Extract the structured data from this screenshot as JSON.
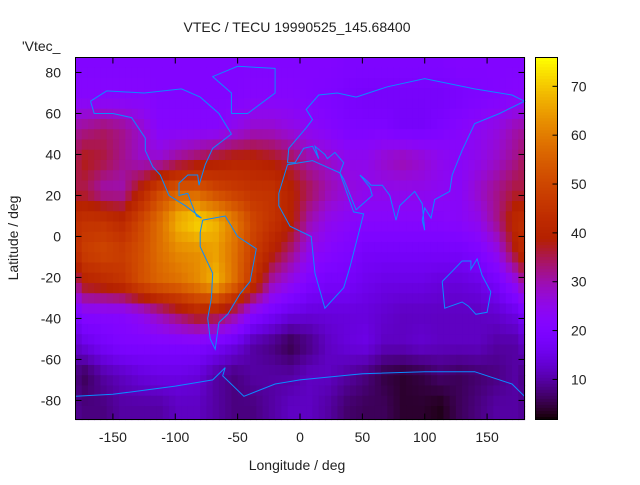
{
  "chart_data": {
    "type": "heatmap",
    "title": "VTEC / TECU 19990525_145.68400",
    "xlabel": "Longitude / deg",
    "ylabel": "Latitude / deg",
    "key_label": "'Vtec_",
    "xlim": [
      -180,
      180
    ],
    "ylim": [
      -89.3,
      87.3
    ],
    "xticks": [
      -150,
      -100,
      -50,
      0,
      50,
      100,
      150
    ],
    "yticks": [
      -80,
      -60,
      -40,
      -20,
      0,
      20,
      40,
      60,
      80
    ],
    "cbrange": [
      1.8,
      75.9
    ],
    "cbticks": [
      10,
      20,
      30,
      40,
      50,
      60,
      70
    ],
    "palette": "gnuplot rgbformulae 7,5,15",
    "coastline_color": "#0a8cff",
    "grid_lon_centers": [
      -172.5,
      -157.5,
      -142.5,
      -127.5,
      -112.5,
      -97.5,
      -82.5,
      -67.5,
      -52.5,
      -37.5,
      -22.5,
      -7.5,
      7.5,
      22.5,
      37.5,
      52.5,
      67.5,
      82.5,
      97.5,
      112.5,
      127.5,
      142.5,
      157.5,
      172.5
    ],
    "grid_lat_centers": [
      82.5,
      67.5,
      52.5,
      37.5,
      22.5,
      7.5,
      -7.5,
      -22.5,
      -37.5,
      -52.5,
      -67.5,
      -82.5
    ],
    "values": [
      [
        21,
        21,
        21,
        21,
        21,
        21,
        21,
        21,
        21,
        21,
        21,
        21,
        21,
        21,
        20,
        20,
        20,
        20,
        20,
        20,
        21,
        21,
        21,
        21
      ],
      [
        22,
        22,
        22,
        22,
        21,
        21,
        21,
        21,
        21,
        22,
        22,
        22,
        21,
        20,
        19,
        18,
        18,
        18,
        18,
        18,
        19,
        20,
        21,
        22
      ],
      [
        32,
        34,
        32,
        28,
        22,
        22,
        22,
        22,
        25,
        28,
        28,
        26,
        24,
        22,
        20,
        20,
        20,
        18,
        18,
        20,
        22,
        24,
        26,
        30
      ],
      [
        38,
        36,
        32,
        28,
        28,
        32,
        35,
        38,
        40,
        40,
        38,
        35,
        30,
        28,
        25,
        25,
        28,
        30,
        28,
        25,
        23,
        25,
        28,
        32
      ],
      [
        35,
        30,
        30,
        40,
        50,
        55,
        55,
        50,
        47,
        45,
        45,
        40,
        35,
        30,
        27,
        25,
        25,
        25,
        25,
        24,
        23,
        28,
        32,
        36
      ],
      [
        45,
        45,
        42,
        50,
        58,
        68,
        72,
        68,
        60,
        50,
        45,
        40,
        30,
        25,
        23,
        22,
        22,
        22,
        22,
        22,
        23,
        25,
        32,
        42
      ],
      [
        48,
        50,
        48,
        52,
        58,
        62,
        63,
        65,
        58,
        48,
        40,
        33,
        25,
        22,
        20,
        18,
        18,
        18,
        18,
        18,
        18,
        20,
        25,
        38
      ],
      [
        40,
        42,
        45,
        52,
        56,
        58,
        62,
        68,
        58,
        45,
        30,
        25,
        20,
        18,
        18,
        16,
        15,
        15,
        15,
        14,
        14,
        15,
        18,
        25
      ],
      [
        22,
        22,
        22,
        25,
        30,
        35,
        40,
        38,
        32,
        22,
        18,
        15,
        14,
        14,
        14,
        14,
        13,
        12,
        12,
        12,
        12,
        12,
        13,
        15
      ],
      [
        15,
        18,
        20,
        20,
        20,
        20,
        20,
        18,
        15,
        10,
        8,
        5,
        8,
        12,
        14,
        15,
        12,
        12,
        13,
        12,
        12,
        12,
        10,
        10
      ],
      [
        6,
        10,
        12,
        14,
        15,
        15,
        14,
        10,
        8,
        10,
        10,
        10,
        12,
        12,
        10,
        8,
        5,
        4,
        5,
        7,
        6,
        7,
        8,
        10
      ],
      [
        8,
        8,
        10,
        10,
        10,
        12,
        12,
        10,
        8,
        8,
        10,
        12,
        12,
        10,
        7,
        6,
        6,
        4,
        4,
        3,
        6,
        8,
        10,
        10
      ]
    ],
    "coastlines": [
      [
        [
          -168,
          66
        ],
        [
          -155,
          71
        ],
        [
          -125,
          70
        ],
        [
          -95,
          72
        ],
        [
          -80,
          68
        ],
        [
          -65,
          60
        ],
        [
          -55,
          50
        ],
        [
          -70,
          43
        ],
        [
          -76,
          35
        ],
        [
          -81,
          25
        ],
        [
          -82,
          30
        ],
        [
          -90,
          30
        ],
        [
          -97,
          26
        ],
        [
          -97,
          20
        ],
        [
          -90,
          21
        ],
        [
          -87,
          16
        ],
        [
          -83,
          10
        ],
        [
          -79,
          9
        ],
        [
          -92,
          15
        ],
        [
          -105,
          20
        ],
        [
          -112,
          30
        ],
        [
          -118,
          34
        ],
        [
          -124,
          42
        ],
        [
          -124,
          48
        ],
        [
          -135,
          58
        ],
        [
          -150,
          60
        ],
        [
          -165,
          60
        ],
        [
          -168,
          66
        ]
      ],
      [
        [
          -78,
          8
        ],
        [
          -60,
          10
        ],
        [
          -50,
          0
        ],
        [
          -35,
          -6
        ],
        [
          -40,
          -22
        ],
        [
          -48,
          -28
        ],
        [
          -58,
          -38
        ],
        [
          -65,
          -42
        ],
        [
          -68,
          -55
        ],
        [
          -72,
          -50
        ],
        [
          -74,
          -40
        ],
        [
          -71,
          -30
        ],
        [
          -70,
          -18
        ],
        [
          -80,
          -5
        ],
        [
          -80,
          2
        ],
        [
          -78,
          8
        ]
      ],
      [
        [
          -17,
          21
        ],
        [
          -10,
          35
        ],
        [
          10,
          37
        ],
        [
          32,
          31
        ],
        [
          43,
          12
        ],
        [
          51,
          11
        ],
        [
          40,
          -15
        ],
        [
          35,
          -25
        ],
        [
          20,
          -35
        ],
        [
          12,
          -18
        ],
        [
          9,
          0
        ],
        [
          -8,
          5
        ],
        [
          -17,
          15
        ],
        [
          -17,
          21
        ]
      ],
      [
        [
          -10,
          36
        ],
        [
          -9,
          43
        ],
        [
          -2,
          48
        ],
        [
          5,
          53
        ],
        [
          10,
          57
        ],
        [
          5,
          62
        ],
        [
          15,
          69
        ],
        [
          30,
          70
        ],
        [
          45,
          68
        ],
        [
          70,
          73
        ],
        [
          100,
          77
        ],
        [
          140,
          72
        ],
        [
          170,
          69
        ],
        [
          180,
          66
        ],
        [
          160,
          60
        ],
        [
          140,
          55
        ],
        [
          130,
          42
        ],
        [
          122,
          30
        ],
        [
          120,
          22
        ],
        [
          108,
          18
        ],
        [
          105,
          9
        ],
        [
          100,
          14
        ],
        [
          98,
          8
        ],
        [
          100,
          3
        ],
        [
          98,
          16
        ],
        [
          92,
          22
        ],
        [
          80,
          15
        ],
        [
          77,
          8
        ],
        [
          72,
          20
        ],
        [
          66,
          25
        ],
        [
          57,
          25
        ],
        [
          52,
          28
        ],
        [
          48,
          30
        ],
        [
          56,
          24
        ],
        [
          58,
          20
        ],
        [
          45,
          13
        ],
        [
          35,
          28
        ],
        [
          32,
          31
        ],
        [
          35,
          36
        ],
        [
          28,
          41
        ],
        [
          22,
          38
        ],
        [
          20,
          40
        ],
        [
          12,
          44
        ],
        [
          15,
          38
        ],
        [
          10,
          44
        ],
        [
          3,
          43
        ],
        [
          -4,
          36
        ],
        [
          -10,
          36
        ]
      ],
      [
        [
          114,
          -22
        ],
        [
          122,
          -17
        ],
        [
          130,
          -12
        ],
        [
          137,
          -12
        ],
        [
          137,
          -16
        ],
        [
          142,
          -11
        ],
        [
          146,
          -19
        ],
        [
          153,
          -27
        ],
        [
          150,
          -37
        ],
        [
          141,
          -38
        ],
        [
          135,
          -34
        ],
        [
          130,
          -32
        ],
        [
          116,
          -35
        ],
        [
          114,
          -22
        ]
      ],
      [
        [
          -180,
          -78
        ],
        [
          -150,
          -77
        ],
        [
          -100,
          -73
        ],
        [
          -70,
          -70
        ],
        [
          -60,
          -64
        ],
        [
          -62,
          -68
        ],
        [
          -45,
          -78
        ],
        [
          -20,
          -72
        ],
        [
          0,
          -70
        ],
        [
          50,
          -67
        ],
        [
          100,
          -66
        ],
        [
          140,
          -66
        ],
        [
          170,
          -72
        ],
        [
          180,
          -78
        ]
      ],
      [
        [
          -55,
          60
        ],
        [
          -42,
          60
        ],
        [
          -20,
          70
        ],
        [
          -20,
          82
        ],
        [
          -50,
          83
        ],
        [
          -70,
          78
        ],
        [
          -55,
          70
        ],
        [
          -55,
          60
        ]
      ]
    ]
  }
}
